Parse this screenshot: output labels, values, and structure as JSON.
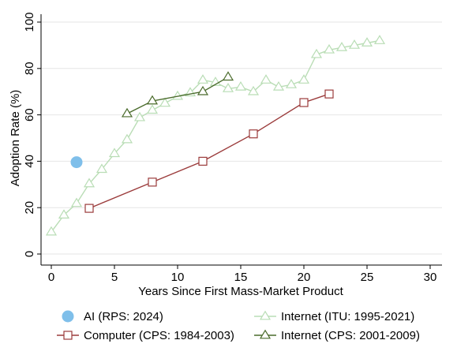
{
  "chart_data": {
    "type": "line",
    "xlabel": "Years Since First Mass-Market Product",
    "ylabel": "Adoption Rate  (%)",
    "xlim": [
      0,
      30
    ],
    "ylim": [
      0,
      100
    ],
    "xticks": [
      "0",
      "5",
      "10",
      "15",
      "20",
      "25",
      "30"
    ],
    "yticks": [
      "0",
      "20",
      "40",
      "60",
      "80",
      "100"
    ],
    "grid": true,
    "legend_position": "bottom",
    "series": [
      {
        "name": "AI (RPS: 2024)",
        "marker": "circle",
        "color": "#7fbfea",
        "points": [
          [
            2,
            39.6
          ]
        ]
      },
      {
        "name": "Internet (ITU: 1995-2021)",
        "marker": "triangle",
        "color": "#b9ddb5",
        "points": [
          [
            0,
            9.5
          ],
          [
            1,
            16.8
          ],
          [
            2,
            21.8
          ],
          [
            3,
            30.3
          ],
          [
            4,
            36.5
          ],
          [
            5,
            43.3
          ],
          [
            6,
            49.3
          ],
          [
            7,
            58.8
          ],
          [
            8,
            62.0
          ],
          [
            9,
            65.0
          ],
          [
            10,
            68.0
          ],
          [
            11,
            69.5
          ],
          [
            12,
            75.0
          ],
          [
            13,
            74.0
          ],
          [
            14,
            71.3
          ],
          [
            15,
            72.0
          ],
          [
            16,
            70.0
          ],
          [
            17,
            75.0
          ],
          [
            18,
            72.0
          ],
          [
            19,
            73.0
          ],
          [
            20,
            75.0
          ],
          [
            21,
            86.0
          ],
          [
            22,
            88.0
          ],
          [
            23,
            89.0
          ],
          [
            24,
            90.0
          ],
          [
            25,
            91.0
          ],
          [
            26,
            92.0
          ]
        ]
      },
      {
        "name": "Computer (CPS: 1984-2003)",
        "marker": "square",
        "color": "#9b3b3b",
        "points": [
          [
            3,
            19.7
          ],
          [
            8,
            31.0
          ],
          [
            12,
            40.0
          ],
          [
            16,
            51.8
          ],
          [
            20,
            65.3
          ],
          [
            22,
            69.0
          ]
        ]
      },
      {
        "name": "Internet (CPS: 2001-2009)",
        "marker": "triangle",
        "color": "#4a6b2b",
        "points": [
          [
            6,
            60.5
          ],
          [
            8,
            66.0
          ],
          [
            12,
            70.0
          ],
          [
            14,
            76.3
          ]
        ]
      }
    ]
  }
}
